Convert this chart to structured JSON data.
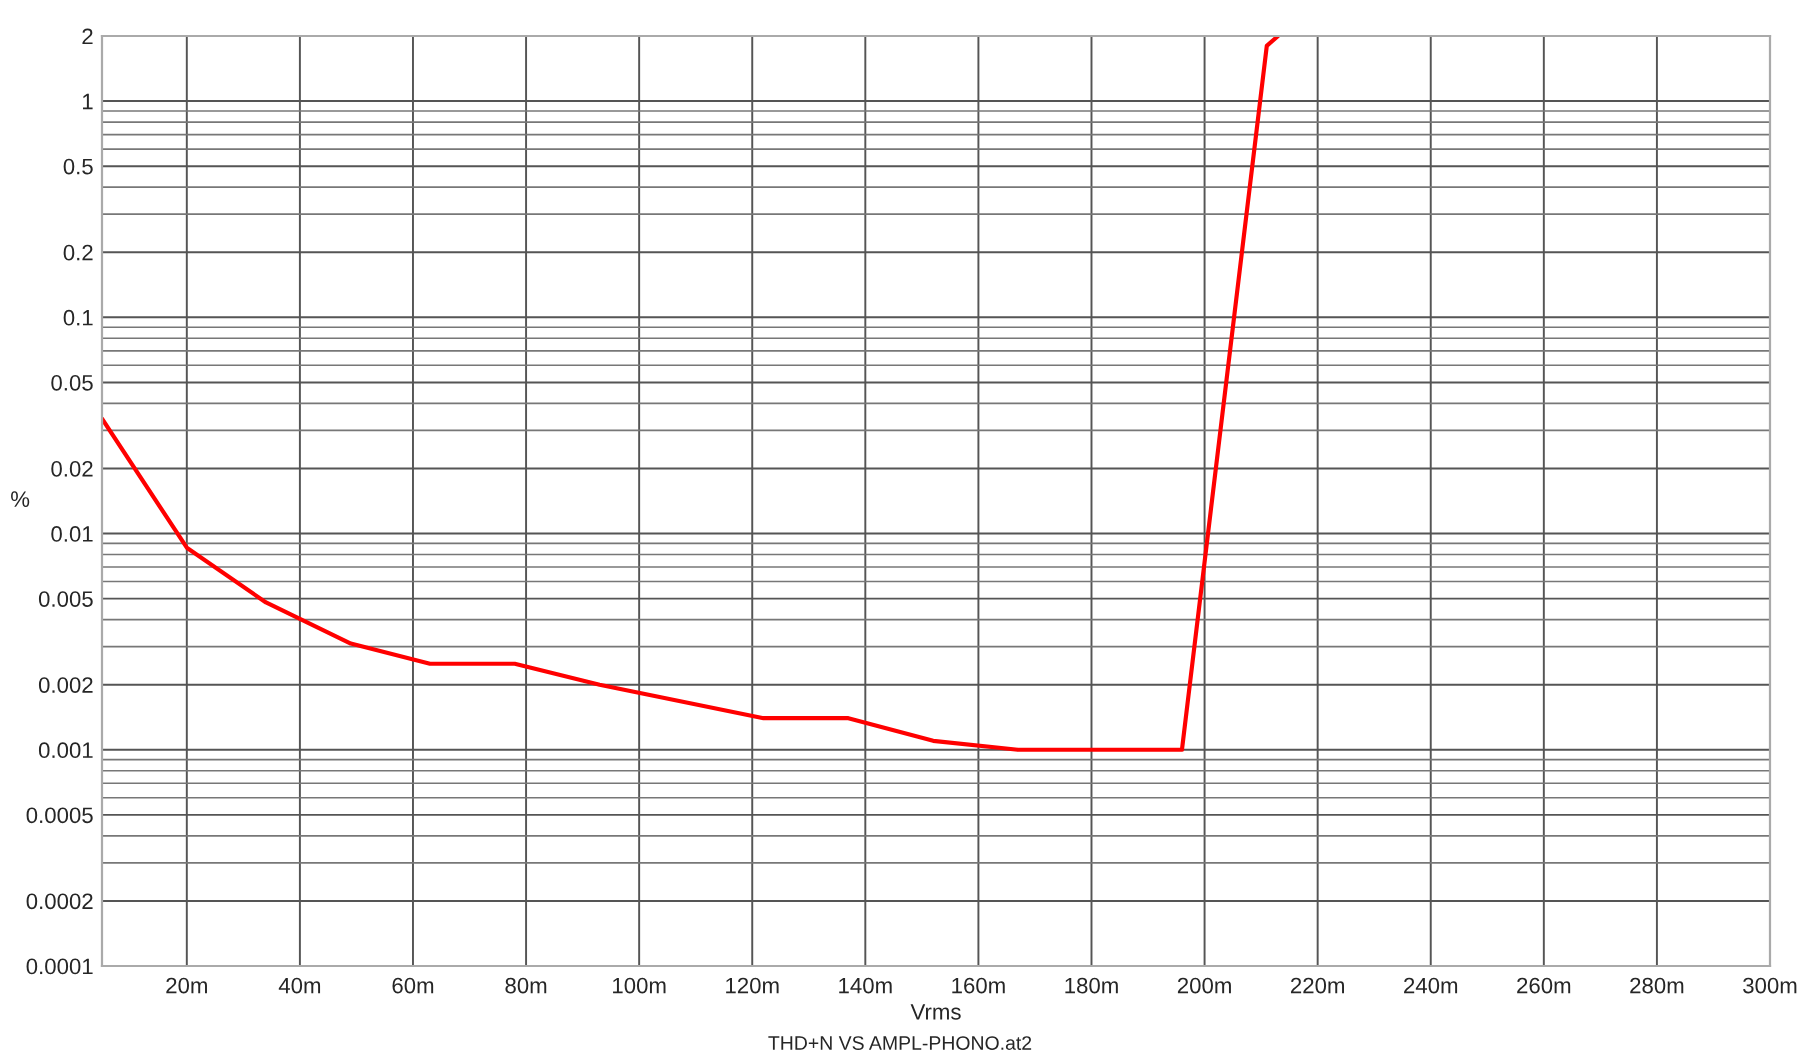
{
  "chart_data": {
    "type": "line",
    "xlabel": "Vrms",
    "ylabel": "%",
    "annotations": [
      "THD+N VS AMPL-PHONO.at2"
    ],
    "series": [
      {
        "color": "#ff0000",
        "x": [
          5,
          20,
          34,
          49,
          63,
          78,
          93,
          122,
          137,
          152,
          167,
          196,
          211,
          213
        ],
        "values": [
          0.034,
          0.0086,
          0.0048,
          0.0031,
          0.0025,
          0.0025,
          0.002,
          0.0014,
          0.0014,
          0.0011,
          0.001,
          0.001,
          1.8,
          2
        ]
      }
    ],
    "log": "y",
    "grid": true,
    "marker": "none",
    "line_style": "solid",
    "xlim": [
      5,
      300
    ],
    "xticks": [
      {
        "value": 20,
        "label": "20m"
      },
      {
        "value": 40,
        "label": "40m"
      },
      {
        "value": 60,
        "label": "60m"
      },
      {
        "value": 80,
        "label": "80m"
      },
      {
        "value": 100,
        "label": "100m"
      },
      {
        "value": 120,
        "label": "120m"
      },
      {
        "value": 140,
        "label": "140m"
      },
      {
        "value": 160,
        "label": "160m"
      },
      {
        "value": 180,
        "label": "180m"
      },
      {
        "value": 200,
        "label": "200m"
      },
      {
        "value": 220,
        "label": "220m"
      },
      {
        "value": 240,
        "label": "240m"
      },
      {
        "value": 260,
        "label": "260m"
      },
      {
        "value": 280,
        "label": "280m"
      },
      {
        "value": 300,
        "label": "300m"
      }
    ],
    "ylim": [
      0.0001,
      2
    ],
    "yticks": [
      0.0001,
      0.0002,
      0.0005,
      0.001,
      0.002,
      0.005,
      0.01,
      0.02,
      0.05,
      0.1,
      0.2,
      0.5,
      1,
      2
    ]
  }
}
